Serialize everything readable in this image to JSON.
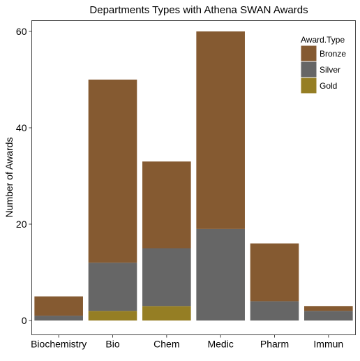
{
  "chart_data": {
    "type": "bar",
    "stacked": true,
    "title": "Departments Types with Athena SWAN Awards",
    "xlabel": "",
    "ylabel": "Number of Awards",
    "categories": [
      "Biochemistry",
      "Bio",
      "Chem",
      "Medic",
      "Pharm",
      "Immun"
    ],
    "ylim": [
      -2,
      63
    ],
    "yticks": [
      0,
      20,
      40,
      60
    ],
    "grid": false,
    "legend": {
      "title": "Award.Type",
      "position": "top-right"
    },
    "series": [
      {
        "name": "Bronze",
        "color": "#855a31",
        "values": [
          4,
          38,
          18,
          41,
          12,
          1
        ]
      },
      {
        "name": "Silver",
        "color": "#666666",
        "values": [
          1,
          10,
          12,
          19,
          4,
          2
        ]
      },
      {
        "name": "Gold",
        "color": "#957e24",
        "values": [
          0,
          2,
          3,
          0,
          0,
          0
        ]
      }
    ]
  }
}
